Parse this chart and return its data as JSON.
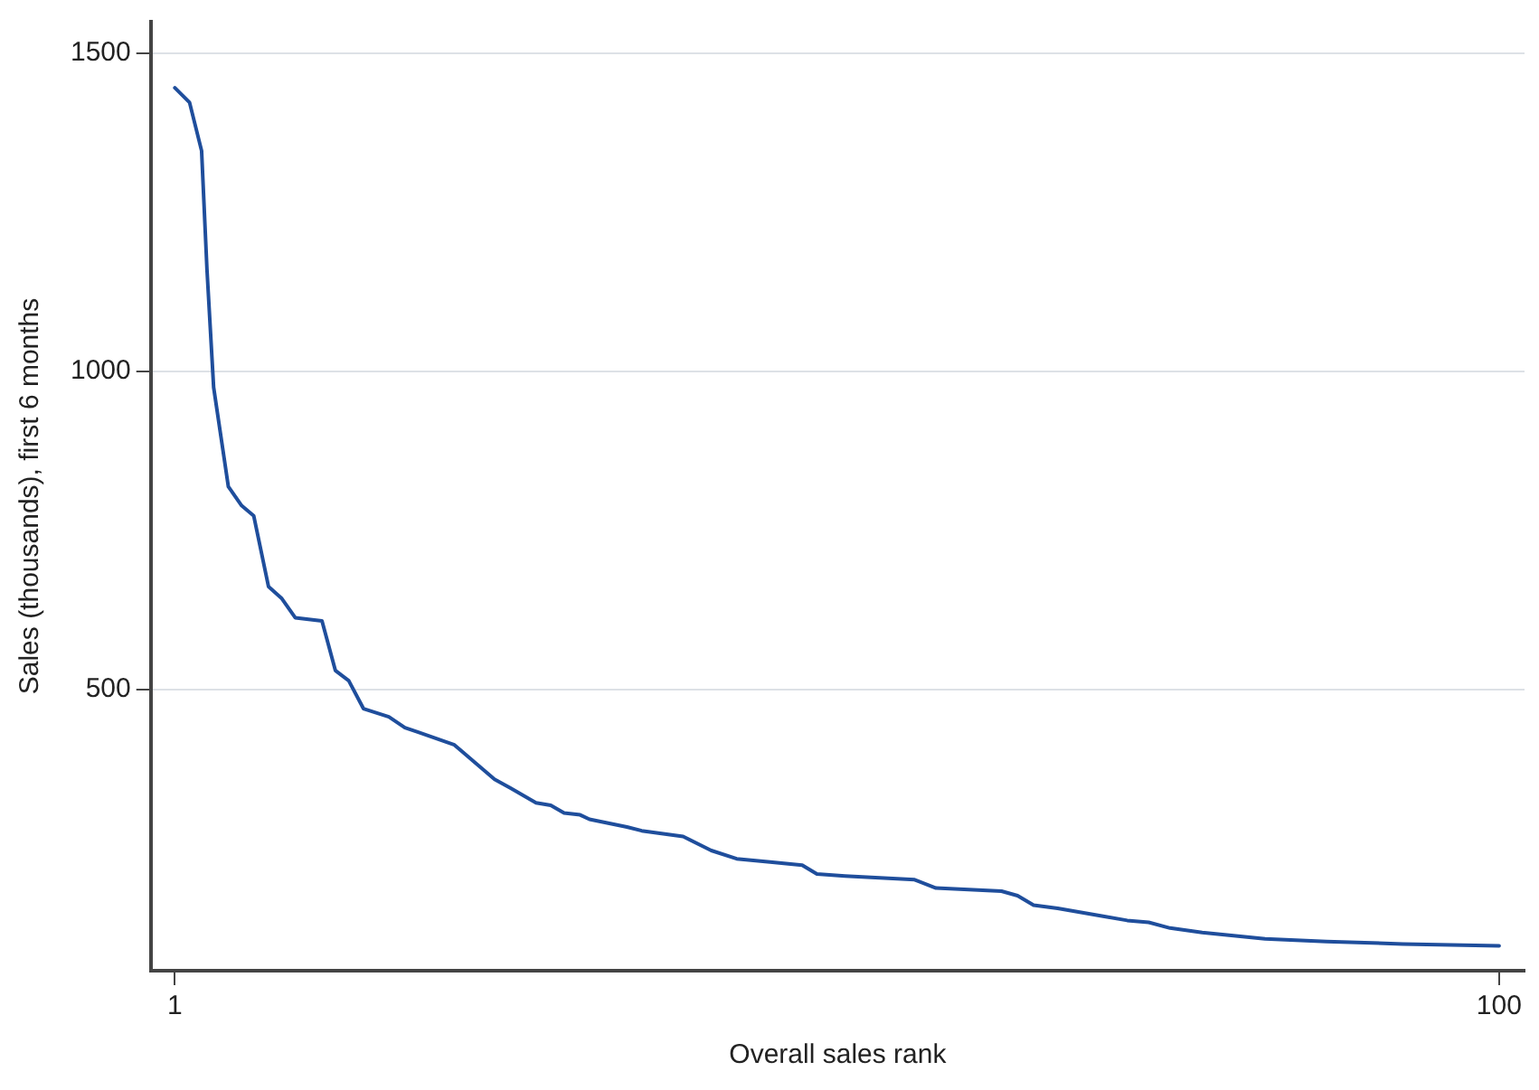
{
  "chart_data": {
    "type": "line",
    "xlabel": "Overall sales rank",
    "ylabel": "Sales (thousands), first 6 months",
    "xlim": [
      -0.8,
      101.9
    ],
    "xticks": [
      1,
      100
    ],
    "ylim": [
      58,
      1550
    ],
    "yticks": [
      500,
      1000,
      1500
    ],
    "grid": "y",
    "legend": false,
    "marker": "none",
    "line_style": "solid",
    "series": [
      {
        "color": "#1f4e9c",
        "x": [
          1,
          2.1,
          3,
          3.4,
          3.9,
          5,
          6,
          6.9,
          8,
          9,
          10,
          12,
          13,
          14,
          15.1,
          17,
          18.2,
          19.2,
          21.9,
          23.5,
          24.9,
          26.1,
          28,
          29.1,
          30.1,
          31.3,
          32,
          34.8,
          35.9,
          39,
          41.1,
          43,
          45.5,
          47.9,
          49,
          51.1,
          56.3,
          57.9,
          62.8,
          64,
          65.2,
          67,
          70.3,
          72.2,
          73.8,
          75.4,
          77.8,
          82.5,
          87.1,
          92.8,
          100
        ],
        "values": [
          1446,
          1423,
          1347,
          1161,
          975,
          819,
          789,
          773,
          662,
          643,
          613,
          608,
          530,
          514,
          470,
          457,
          440,
          433,
          413,
          384,
          359,
          345,
          322,
          318,
          306,
          303,
          296,
          284,
          278,
          269,
          247,
          234,
          229,
          224,
          210,
          207,
          201,
          188,
          183,
          176,
          161,
          156,
          144,
          137,
          134,
          125,
          118,
          108,
          104,
          100,
          97
        ]
      }
    ]
  }
}
